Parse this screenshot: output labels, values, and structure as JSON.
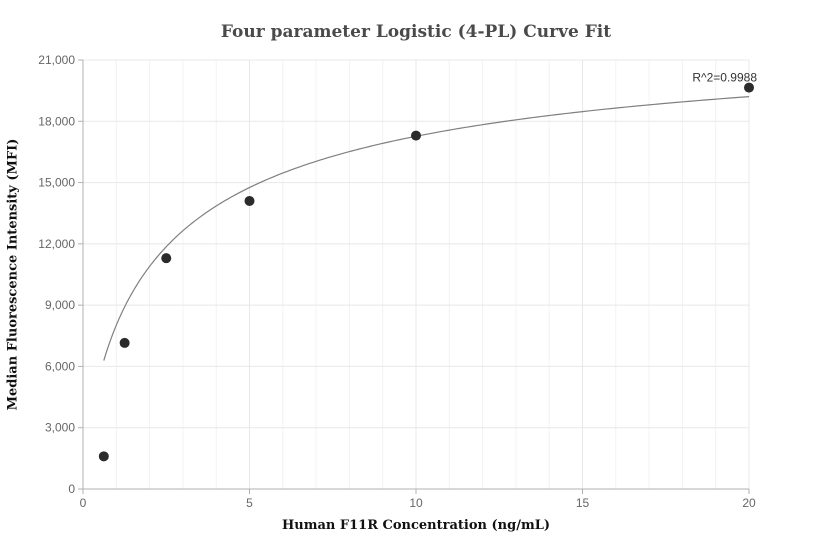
{
  "chart_data": {
    "type": "scatter",
    "title": "Four parameter Logistic (4-PL) Curve Fit",
    "xlabel": "Human F11R Concentration (ng/mL)",
    "ylabel": "Median Fluorescence Intensity (MFI)",
    "xlim": [
      0,
      20
    ],
    "ylim": [
      0,
      21000
    ],
    "x_ticks": [
      0,
      5,
      10,
      15,
      20
    ],
    "x_tick_labels": [
      "0",
      "5",
      "10",
      "15",
      "20"
    ],
    "y_ticks": [
      0,
      3000,
      6000,
      9000,
      12000,
      15000,
      18000,
      21000
    ],
    "y_tick_labels": [
      "0",
      "3,000",
      "6,000",
      "9,000",
      "12,000",
      "15,000",
      "18,000",
      "21,000"
    ],
    "grid": true,
    "points": [
      {
        "x": 0.625,
        "y": 1600
      },
      {
        "x": 1.25,
        "y": 7150
      },
      {
        "x": 2.5,
        "y": 11300
      },
      {
        "x": 5,
        "y": 14100
      },
      {
        "x": 10,
        "y": 17300
      },
      {
        "x": 20,
        "y": 19650
      }
    ],
    "fit_curve": {
      "model": "4PL",
      "a": 0,
      "d": 23000,
      "c": 2.3,
      "b": 0.75
    },
    "annotation": "R^2=0.9988",
    "colors": {
      "points": "#2b2b2b",
      "curve": "#7f7f7f",
      "grid": "#e8e8e8",
      "axis": "#b0b0b0"
    }
  }
}
